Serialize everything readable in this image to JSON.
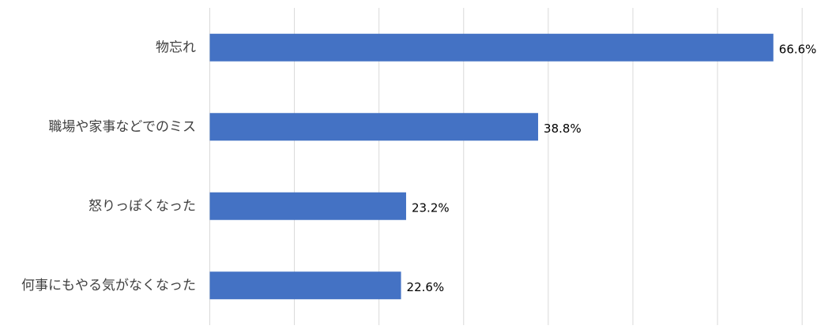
{
  "chart_data": {
    "type": "bar",
    "orientation": "horizontal",
    "categories": [
      "物忘れ",
      "職場や家事などでのミス",
      "怒りっぽくなった",
      "何事にもやる気がなくなった"
    ],
    "values": [
      66.6,
      38.8,
      23.2,
      22.6
    ],
    "data_labels": [
      "66.6%",
      "38.8%",
      "23.2%",
      "22.6%"
    ],
    "value_unit": "%",
    "xlim": [
      0,
      70
    ],
    "grid": true,
    "legend": "none",
    "bar_color": "#4472C4",
    "gridline_color": "#D9D9D9"
  }
}
